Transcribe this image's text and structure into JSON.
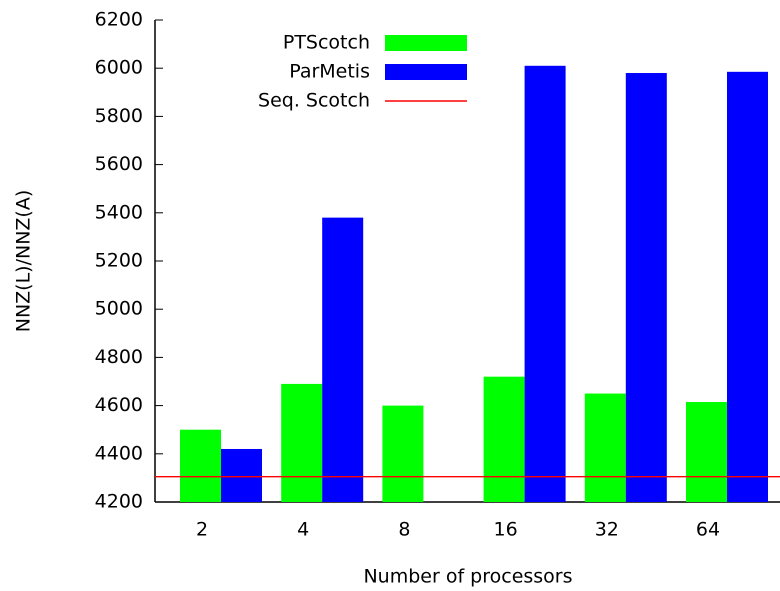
{
  "chart_data": {
    "type": "bar",
    "xlabel": "Number of processors",
    "ylabel": "NNZ(L)/NNZ(A)",
    "categories": [
      "2",
      "4",
      "8",
      "16",
      "32",
      "64"
    ],
    "series": [
      {
        "name": "PTScotch",
        "color": "#00ff00",
        "values": [
          4500,
          4690,
          4600,
          4720,
          4650,
          4615
        ]
      },
      {
        "name": "ParMetis",
        "color": "#0000ff",
        "values": [
          4420,
          5380,
          null,
          6010,
          5980,
          5985
        ]
      }
    ],
    "reference_lines": [
      {
        "name": "Seq. Scotch",
        "color": "#ff0000",
        "value": 4305
      }
    ],
    "ylim": [
      4200,
      6200
    ],
    "yticks": [
      4200,
      4400,
      4600,
      4800,
      5000,
      5200,
      5400,
      5600,
      5800,
      6000,
      6200
    ],
    "legend": "top-center"
  }
}
